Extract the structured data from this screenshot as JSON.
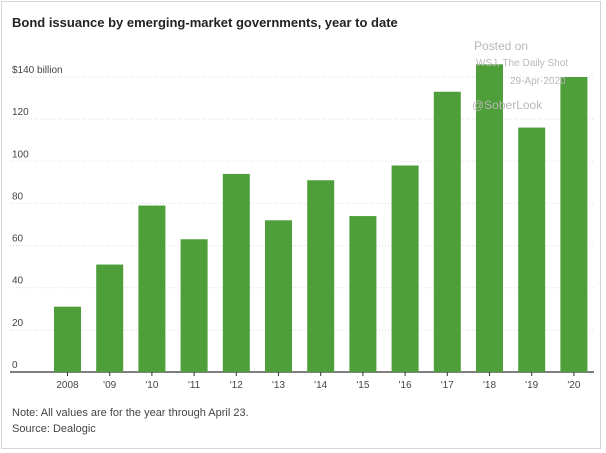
{
  "chart_data": {
    "type": "bar",
    "title": "Bond issuance by emerging-market governments, year to date",
    "ylabel": "$140 billion",
    "xlabel": "",
    "categories": [
      "2008",
      "'09",
      "'10",
      "'11",
      "'12",
      "'13",
      "'14",
      "'15",
      "'16",
      "'17",
      "'18",
      "'19",
      "'20"
    ],
    "values": [
      31,
      51,
      79,
      63,
      94,
      72,
      91,
      74,
      98,
      133,
      146,
      116,
      140
    ],
    "y_ticks": [
      "0",
      "20",
      "40",
      "60",
      "80",
      "100",
      "120",
      "$140 billion"
    ],
    "ylim": [
      0,
      140
    ],
    "grid": true,
    "bar_color": "#4e9e3a"
  },
  "watermark": {
    "line1": "Posted on",
    "line2": "WSJ, The Daily Shot",
    "line3": "29-Apr-2020",
    "line4": "@SoberLook"
  },
  "footer": {
    "note": "Note: All values are for the year through April 23.",
    "source": "Source: Dealogic"
  }
}
